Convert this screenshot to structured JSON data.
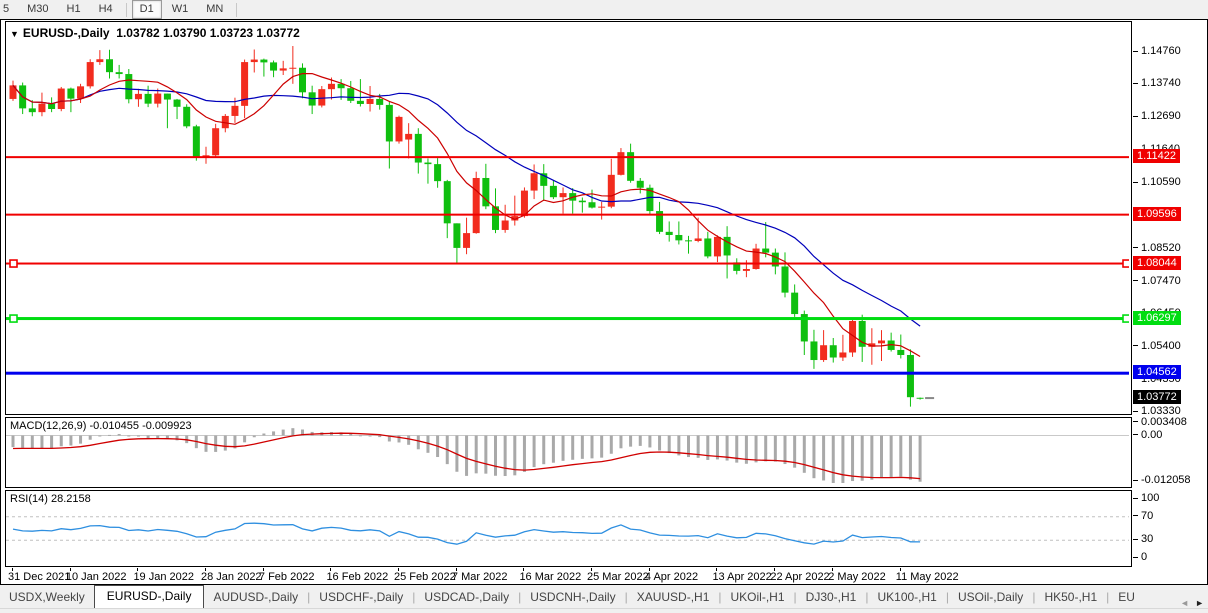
{
  "toolbar": {
    "buttons": [
      "5",
      "M30",
      "H1",
      "H4",
      "D1",
      "W1",
      "MN"
    ],
    "active": "D1",
    "dividers_after": [
      3,
      6
    ]
  },
  "chart_header": {
    "symbol": "EURUSD-,Daily",
    "quote": "1.03782 1.03790 1.03723 1.03772",
    "dropdown_icon": "▼"
  },
  "chart_data": {
    "type": "candlestick",
    "symbol": "EURUSD-",
    "timeframe": "Daily",
    "quote": {
      "open": 1.03782,
      "high": 1.0379,
      "low": 1.03723,
      "close": 1.03772
    },
    "candles": [
      [
        1.1327,
        1.1385,
        1.1321,
        1.137
      ],
      [
        1.137,
        1.1379,
        1.1279,
        1.1297
      ],
      [
        1.1297,
        1.1323,
        1.1272,
        1.1285
      ],
      [
        1.1285,
        1.1347,
        1.1272,
        1.1312
      ],
      [
        1.1312,
        1.1332,
        1.1285,
        1.1295
      ],
      [
        1.1295,
        1.1365,
        1.1288,
        1.136
      ],
      [
        1.136,
        1.1363,
        1.1285,
        1.1328
      ],
      [
        1.1328,
        1.1375,
        1.1314,
        1.1367
      ],
      [
        1.1367,
        1.1453,
        1.136,
        1.1444
      ],
      [
        1.1444,
        1.1482,
        1.1435,
        1.1453
      ],
      [
        1.1453,
        1.1483,
        1.1392,
        1.1412
      ],
      [
        1.1412,
        1.1435,
        1.1392,
        1.1406
      ],
      [
        1.1406,
        1.1422,
        1.1313,
        1.1326
      ],
      [
        1.1326,
        1.1359,
        1.1302,
        1.1343
      ],
      [
        1.1343,
        1.1369,
        1.1301,
        1.1312
      ],
      [
        1.1312,
        1.136,
        1.13,
        1.1344
      ],
      [
        1.1344,
        1.1344,
        1.1234,
        1.1325
      ],
      [
        1.1325,
        1.1327,
        1.1263,
        1.1302
      ],
      [
        1.1302,
        1.131,
        1.1234,
        1.124
      ],
      [
        1.124,
        1.1245,
        1.1131,
        1.1144
      ],
      [
        1.1144,
        1.1175,
        1.1121,
        1.1148
      ],
      [
        1.1148,
        1.1248,
        1.1141,
        1.1234
      ],
      [
        1.1234,
        1.1279,
        1.1221,
        1.1273
      ],
      [
        1.1273,
        1.1331,
        1.1251,
        1.1305
      ],
      [
        1.1305,
        1.1452,
        1.1266,
        1.1444
      ],
      [
        1.1444,
        1.1484,
        1.1411,
        1.1452
      ],
      [
        1.1452,
        1.1455,
        1.1398,
        1.1443
      ],
      [
        1.1443,
        1.1449,
        1.1396,
        1.1417
      ],
      [
        1.1417,
        1.1448,
        1.1403,
        1.1424
      ],
      [
        1.1424,
        1.1495,
        1.1375,
        1.1426
      ],
      [
        1.1426,
        1.144,
        1.1329,
        1.1348
      ],
      [
        1.1348,
        1.1369,
        1.1279,
        1.1306
      ],
      [
        1.1306,
        1.1368,
        1.13,
        1.1358
      ],
      [
        1.1358,
        1.1395,
        1.1325,
        1.1375
      ],
      [
        1.1375,
        1.139,
        1.1324,
        1.1361
      ],
      [
        1.1361,
        1.1384,
        1.1314,
        1.1321
      ],
      [
        1.1321,
        1.139,
        1.1303,
        1.1311
      ],
      [
        1.1311,
        1.1368,
        1.1287,
        1.1327
      ],
      [
        1.1327,
        1.1343,
        1.1293,
        1.1308
      ],
      [
        1.1308,
        1.132,
        1.1106,
        1.1192
      ],
      [
        1.1192,
        1.1274,
        1.1185,
        1.127
      ],
      [
        1.1198,
        1.125,
        1.1138,
        1.1216
      ],
      [
        1.1216,
        1.1234,
        1.109,
        1.1125
      ],
      [
        1.1125,
        1.1138,
        1.1058,
        1.112
      ],
      [
        1.112,
        1.1139,
        1.1045,
        1.1066
      ],
      [
        1.1066,
        1.107,
        1.0885,
        1.0932
      ],
      [
        1.0932,
        1.0932,
        1.0806,
        1.0854
      ],
      [
        1.0854,
        1.095,
        1.0834,
        1.0901
      ],
      [
        1.0901,
        1.1096,
        1.0899,
        1.1076
      ],
      [
        1.1076,
        1.1121,
        1.0977,
        1.0986
      ],
      [
        1.0986,
        1.1043,
        1.0901,
        1.0911
      ],
      [
        1.0911,
        1.0991,
        1.0902,
        1.0941
      ],
      [
        1.0941,
        1.102,
        1.0925,
        1.0955
      ],
      [
        1.0955,
        1.1046,
        1.095,
        1.1036
      ],
      [
        1.1036,
        1.1119,
        1.1009,
        1.1091
      ],
      [
        1.1091,
        1.112,
        1.1003,
        1.1051
      ],
      [
        1.1051,
        1.1069,
        1.1009,
        1.1015
      ],
      [
        1.1015,
        1.1046,
        1.0963,
        1.1028
      ],
      [
        1.1028,
        1.1044,
        1.0963,
        1.1004
      ],
      [
        1.1004,
        1.1014,
        1.0966,
        1.0999
      ],
      [
        1.0999,
        1.1039,
        1.0979,
        1.0982
      ],
      [
        1.0982,
        1.1,
        1.0944,
        1.0985
      ],
      [
        1.0985,
        1.1137,
        1.098,
        1.1086
      ],
      [
        1.1086,
        1.1171,
        1.1084,
        1.1158
      ],
      [
        1.1158,
        1.1185,
        1.1061,
        1.1067
      ],
      [
        1.1067,
        1.1076,
        1.1027,
        1.1045
      ],
      [
        1.1045,
        1.1055,
        1.096,
        1.0971
      ],
      [
        1.0971,
        1.1,
        1.0898,
        1.0905
      ],
      [
        1.0905,
        1.0938,
        1.0874,
        1.0895
      ],
      [
        1.0895,
        1.0938,
        1.0865,
        1.0878
      ],
      [
        1.0878,
        1.0892,
        1.0836,
        1.0876
      ],
      [
        1.0876,
        1.095,
        1.0872,
        1.0884
      ],
      [
        1.0884,
        1.0905,
        1.0821,
        1.0827
      ],
      [
        1.0827,
        1.0894,
        1.0809,
        1.0889
      ],
      [
        1.0889,
        1.0923,
        1.0757,
        1.083
      ],
      [
        1.0808,
        1.0821,
        1.077,
        1.0781
      ],
      [
        1.0781,
        1.0815,
        1.0761,
        1.0787
      ],
      [
        1.0787,
        1.0867,
        1.0785,
        1.0852
      ],
      [
        1.0852,
        1.0936,
        1.0824,
        1.0839
      ],
      [
        1.0839,
        1.0852,
        1.077,
        1.0795
      ],
      [
        1.0795,
        1.084,
        1.0697,
        1.0712
      ],
      [
        1.0712,
        1.0738,
        1.0635,
        1.0644
      ],
      [
        1.0644,
        1.0655,
        1.0514,
        1.0557
      ],
      [
        1.0557,
        1.0594,
        1.047,
        1.0498
      ],
      [
        1.0498,
        1.0593,
        1.0492,
        1.0545
      ],
      [
        1.0545,
        1.0568,
        1.049,
        1.0506
      ],
      [
        1.0506,
        1.0578,
        1.0495,
        1.0522
      ],
      [
        1.0522,
        1.0632,
        1.0508,
        1.0622
      ],
      [
        1.0622,
        1.0642,
        1.0492,
        1.054
      ],
      [
        1.054,
        1.0599,
        1.0483,
        1.0551
      ],
      [
        1.0551,
        1.0593,
        1.0495,
        1.056
      ],
      [
        1.056,
        1.0585,
        1.0525,
        1.053
      ],
      [
        1.053,
        1.0579,
        1.0503,
        1.0514
      ],
      [
        1.0514,
        1.0532,
        1.035,
        1.038
      ],
      [
        1.03782,
        1.0379,
        1.03723,
        1.03772
      ]
    ],
    "x_ticks": [
      {
        "index": 0,
        "label": "31 Dec 2021"
      },
      {
        "index": 6,
        "label": "10 Jan 2022"
      },
      {
        "index": 13,
        "label": "19 Jan 2022"
      },
      {
        "index": 20,
        "label": "28 Jan 2022"
      },
      {
        "index": 26,
        "label": "7 Feb 2022"
      },
      {
        "index": 33,
        "label": "16 Feb 2022"
      },
      {
        "index": 40,
        "label": "25 Feb 2022"
      },
      {
        "index": 46,
        "label": "7 Mar 2022"
      },
      {
        "index": 53,
        "label": "16 Mar 2022"
      },
      {
        "index": 60,
        "label": "25 Mar 2022"
      },
      {
        "index": 66,
        "label": "4 Apr 2022"
      },
      {
        "index": 73,
        "label": "13 Apr 2022"
      },
      {
        "index": 79,
        "label": "22 Apr 2022"
      },
      {
        "index": 85,
        "label": "2 May 2022"
      },
      {
        "index": 92,
        "label": "11 May 2022"
      }
    ],
    "y_ticks": [
      "1.14760",
      "1.13740",
      "1.12690",
      "1.11640",
      "1.10590",
      "1.09540",
      "1.08520",
      "1.07470",
      "1.06450",
      "1.05400",
      "1.04350",
      "1.03330"
    ],
    "horizontal_lines": [
      {
        "price": 1.11422,
        "label": "1.11422",
        "color": "#f00000",
        "thickness": 2,
        "handles": false
      },
      {
        "price": 1.09596,
        "label": "1.09596",
        "color": "#f00000",
        "thickness": 2,
        "handles": false
      },
      {
        "price": 1.08044,
        "label": "1.08044",
        "color": "#f00000",
        "thickness": 2,
        "handles": true
      },
      {
        "price": 1.06297,
        "label": "1.06297",
        "color": "#00dd11",
        "thickness": 3,
        "handles": true
      },
      {
        "price": 1.04562,
        "label": "1.04562",
        "color": "#0000ee",
        "thickness": 3,
        "handles": false
      }
    ],
    "current_price": {
      "price": 1.03772,
      "label": "1.03772",
      "label_bg": "#000000"
    },
    "moving_averages": [
      {
        "name": "fast-ma",
        "period": 8,
        "color": "#cc0000"
      },
      {
        "name": "slow-ma",
        "period": 20,
        "color": "#0000bb"
      }
    ],
    "macd": {
      "label": "MACD(12,26,9) -0.010455 -0.009923",
      "params": "12,26,9",
      "value": -0.010455,
      "signal": -0.009923,
      "y_ticks": [
        {
          "v": 0.003408,
          "label": "0.003408"
        },
        {
          "v": 0,
          "label": "0.00"
        },
        {
          "v": -0.012058,
          "label": "-0.012058"
        }
      ],
      "bar_color": "#a9a9a9",
      "signal_color": "#d00000"
    },
    "rsi": {
      "label": "RSI(14) 28.2158",
      "period": 14,
      "value": 28.2158,
      "levels": [
        70,
        30
      ],
      "y_ticks": [
        {
          "v": 100,
          "label": "100"
        },
        {
          "v": 70,
          "label": "70"
        },
        {
          "v": 30,
          "label": "30"
        },
        {
          "v": 0,
          "label": "0"
        }
      ],
      "line_color": "#2e8fe0"
    },
    "colors": {
      "candle_up": "#f22c1e",
      "candle_down": "#0fbf0f",
      "background": "#ffffff",
      "border": "#000000"
    }
  },
  "tabs": {
    "items": [
      {
        "label": "USDX,Weekly",
        "active": false
      },
      {
        "label": "EURUSD-,Daily",
        "active": true
      },
      {
        "label": "AUDUSD-,Daily",
        "active": false
      },
      {
        "label": "USDCHF-,Daily",
        "active": false
      },
      {
        "label": "USDCAD-,Daily",
        "active": false
      },
      {
        "label": "USDCNH-,Daily",
        "active": false
      },
      {
        "label": "XAUUSD-,H1",
        "active": false
      },
      {
        "label": "UKOil-,H1",
        "active": false
      },
      {
        "label": "DJ30-,H1",
        "active": false
      },
      {
        "label": "UK100-,H1",
        "active": false
      },
      {
        "label": "USOil-,Daily",
        "active": false
      },
      {
        "label": "HK50-,H1",
        "active": false
      },
      {
        "label": "EU",
        "active": false
      }
    ],
    "scroll_left": "◄",
    "scroll_right": "►"
  }
}
